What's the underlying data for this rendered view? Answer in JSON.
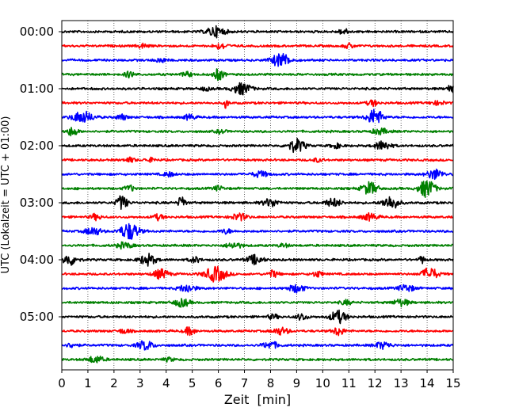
{
  "chart_data": {
    "type": "line",
    "title": "",
    "xlabel": "Zeit  [min]",
    "ylabel": "UTC (Lokalzeit = UTC + 01:00)",
    "xlim": [
      0,
      15
    ],
    "x_ticks": [
      "0",
      "1",
      "2",
      "3",
      "4",
      "5",
      "6",
      "7",
      "8",
      "9",
      "10",
      "11",
      "12",
      "13",
      "14",
      "15"
    ],
    "y_tick_labels": [
      "00:00",
      "01:00",
      "02:00",
      "03:00",
      "04:00",
      "05:00"
    ],
    "grid": "vertical dotted lines at each minute",
    "trace_interval_min": 15,
    "trace_colors": [
      "#000000",
      "#ff0000",
      "#0000ff",
      "#008000"
    ],
    "traces": [
      {
        "start": "00:00",
        "color": "#000000",
        "events": [
          [
            5.9,
            0.9,
            0.35
          ],
          [
            10.8,
            0.5,
            0.2
          ]
        ]
      },
      {
        "start": "00:15",
        "color": "#ff0000",
        "events": [
          [
            6.1,
            0.5,
            0.25
          ],
          [
            3.1,
            0.4,
            0.2
          ],
          [
            11.0,
            0.4,
            0.2
          ]
        ]
      },
      {
        "start": "00:30",
        "color": "#0000ff",
        "events": [
          [
            8.4,
            1.2,
            0.35
          ],
          [
            3.8,
            0.4,
            0.2
          ]
        ]
      },
      {
        "start": "00:45",
        "color": "#008000",
        "events": [
          [
            6.0,
            1.0,
            0.2
          ],
          [
            2.6,
            0.5,
            0.2
          ],
          [
            4.8,
            0.4,
            0.2
          ]
        ]
      },
      {
        "start": "01:00",
        "color": "#000000",
        "events": [
          [
            6.9,
            1.0,
            0.35
          ],
          [
            14.9,
            0.6,
            0.15
          ],
          [
            5.5,
            0.3,
            0.2
          ]
        ]
      },
      {
        "start": "01:15",
        "color": "#ff0000",
        "events": [
          [
            6.3,
            1.0,
            0.08
          ],
          [
            11.9,
            0.5,
            0.2
          ],
          [
            14.4,
            0.3,
            0.3
          ]
        ]
      },
      {
        "start": "01:30",
        "color": "#0000ff",
        "events": [
          [
            0.8,
            1.0,
            0.4
          ],
          [
            12.0,
            1.4,
            0.3
          ],
          [
            2.3,
            0.5,
            0.2
          ],
          [
            4.9,
            0.5,
            0.2
          ]
        ]
      },
      {
        "start": "01:45",
        "color": "#008000",
        "events": [
          [
            0.4,
            0.8,
            0.2
          ],
          [
            12.2,
            0.5,
            0.3
          ],
          [
            6.1,
            0.3,
            0.2
          ]
        ]
      },
      {
        "start": "02:00",
        "color": "#000000",
        "events": [
          [
            9.0,
            1.2,
            0.3
          ],
          [
            12.3,
            0.8,
            0.3
          ],
          [
            10.5,
            0.4,
            0.2
          ]
        ]
      },
      {
        "start": "02:15",
        "color": "#ff0000",
        "events": [
          [
            2.6,
            0.4,
            0.2
          ],
          [
            3.4,
            0.3,
            0.2
          ],
          [
            9.8,
            0.3,
            0.2
          ]
        ]
      },
      {
        "start": "02:30",
        "color": "#0000ff",
        "events": [
          [
            14.3,
            0.9,
            0.3
          ],
          [
            7.6,
            0.5,
            0.3
          ],
          [
            4.1,
            0.4,
            0.2
          ]
        ]
      },
      {
        "start": "02:45",
        "color": "#008000",
        "events": [
          [
            14.0,
            1.6,
            0.3
          ],
          [
            11.8,
            1.1,
            0.3
          ],
          [
            2.6,
            0.5,
            0.2
          ],
          [
            6.0,
            0.4,
            0.2
          ]
        ]
      },
      {
        "start": "03:00",
        "color": "#000000",
        "events": [
          [
            2.3,
            1.3,
            0.2
          ],
          [
            4.6,
            1.4,
            0.12
          ],
          [
            12.6,
            1.2,
            0.3
          ],
          [
            8.0,
            0.7,
            0.3
          ],
          [
            10.4,
            0.7,
            0.3
          ]
        ]
      },
      {
        "start": "03:15",
        "color": "#ff0000",
        "events": [
          [
            6.8,
            0.6,
            0.3
          ],
          [
            11.8,
            0.6,
            0.3
          ],
          [
            1.3,
            0.5,
            0.2
          ],
          [
            3.7,
            0.5,
            0.2
          ]
        ]
      },
      {
        "start": "03:30",
        "color": "#0000ff",
        "events": [
          [
            2.6,
            1.5,
            0.35
          ],
          [
            1.2,
            0.7,
            0.3
          ],
          [
            6.3,
            0.4,
            0.2
          ]
        ]
      },
      {
        "start": "03:45",
        "color": "#008000",
        "events": [
          [
            2.4,
            0.5,
            0.3
          ],
          [
            6.6,
            0.5,
            0.3
          ],
          [
            8.5,
            0.3,
            0.2
          ]
        ]
      },
      {
        "start": "04:00",
        "color": "#000000",
        "events": [
          [
            0.3,
            0.9,
            0.3
          ],
          [
            3.3,
            1.0,
            0.3
          ],
          [
            7.4,
            0.8,
            0.3
          ],
          [
            13.8,
            0.7,
            0.1
          ],
          [
            5.1,
            0.5,
            0.2
          ]
        ]
      },
      {
        "start": "04:15",
        "color": "#ff0000",
        "events": [
          [
            5.9,
            1.3,
            0.4
          ],
          [
            14.1,
            1.1,
            0.3
          ],
          [
            3.8,
            0.8,
            0.3
          ],
          [
            8.1,
            0.6,
            0.2
          ],
          [
            9.8,
            0.5,
            0.2
          ]
        ]
      },
      {
        "start": "04:30",
        "color": "#0000ff",
        "events": [
          [
            4.8,
            0.7,
            0.3
          ],
          [
            9.0,
            0.7,
            0.3
          ],
          [
            13.2,
            0.6,
            0.3
          ]
        ]
      },
      {
        "start": "04:45",
        "color": "#008000",
        "events": [
          [
            4.6,
            0.7,
            0.3
          ],
          [
            13.0,
            0.6,
            0.3
          ],
          [
            10.9,
            0.4,
            0.2
          ]
        ]
      },
      {
        "start": "05:00",
        "color": "#000000",
        "events": [
          [
            10.6,
            1.1,
            0.3
          ],
          [
            9.2,
            0.6,
            0.2
          ],
          [
            8.1,
            0.4,
            0.2
          ]
        ]
      },
      {
        "start": "05:15",
        "color": "#ff0000",
        "events": [
          [
            4.9,
            0.7,
            0.2
          ],
          [
            8.4,
            0.6,
            0.3
          ],
          [
            10.6,
            0.8,
            0.2
          ],
          [
            2.4,
            0.4,
            0.2
          ]
        ]
      },
      {
        "start": "05:30",
        "color": "#0000ff",
        "events": [
          [
            3.2,
            0.8,
            0.3
          ],
          [
            8.0,
            0.6,
            0.3
          ],
          [
            12.3,
            0.6,
            0.3
          ],
          [
            0.4,
            0.4,
            0.2
          ]
        ]
      },
      {
        "start": "05:45",
        "color": "#008000",
        "events": [
          [
            1.3,
            0.6,
            0.3
          ],
          [
            4.1,
            0.3,
            0.2
          ]
        ]
      }
    ]
  }
}
